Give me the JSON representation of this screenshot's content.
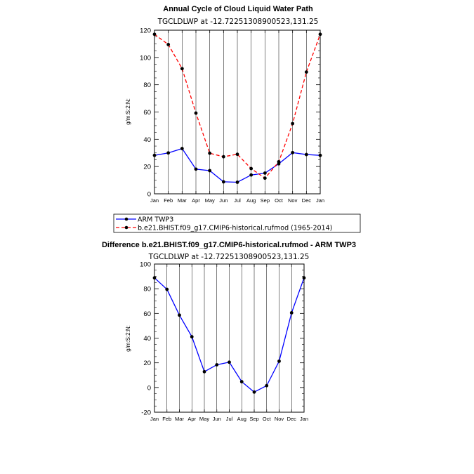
{
  "chart_data": [
    {
      "type": "line",
      "title": "Annual Cycle of Cloud Liquid Water Path",
      "subtitle": "TGCLDLWP  at  -12.72251308900523,131.25",
      "xlabel": "",
      "ylabel": "g/m:S:2:N:",
      "categories": [
        "Jan",
        "Feb",
        "Mar",
        "Apr",
        "May",
        "Jun",
        "Jul",
        "Aug",
        "Sep",
        "Oct",
        "Nov",
        "Dec",
        "Jan"
      ],
      "ylim": [
        0,
        120
      ],
      "yticks": [
        "0",
        "20",
        "40",
        "60",
        "80",
        "100",
        "120"
      ],
      "series": [
        {
          "name": "ARM TWP3",
          "color": "#0000ff",
          "dash": "solid",
          "values": [
            28.2,
            30.0,
            33.2,
            18.1,
            17.0,
            8.8,
            8.5,
            13.8,
            15.2,
            22.0,
            30.2,
            28.8,
            28.2
          ]
        },
        {
          "name": "b.e21.BHIST.f09_g17.CMIP6-historical.rufmod (1965-2014)",
          "color": "#ff0000",
          "dash": "dashed",
          "values": [
            117.0,
            109.5,
            91.8,
            59.2,
            29.8,
            27.2,
            29.0,
            18.5,
            11.5,
            23.5,
            51.5,
            89.3,
            117.0
          ]
        }
      ],
      "legend": {
        "entries": [
          "ARM TWP3",
          "b.e21.BHIST.f09_g17.CMIP6-historical.rufmod (1965-2014)"
        ],
        "placement": "below-plot"
      }
    },
    {
      "type": "line",
      "title": "Difference b.e21.BHIST.f09_g17.CMIP6-historical.rufmod - ARM TWP3",
      "subtitle": "TGCLDLWP  at  -12.72251308900523,131.25",
      "xlabel": "",
      "ylabel": "g/m:S:2:N:",
      "categories": [
        "Jan",
        "Feb",
        "Mar",
        "Apr",
        "May",
        "Jun",
        "Jul",
        "Aug",
        "Sep",
        "Oct",
        "Nov",
        "Dec",
        "Jan"
      ],
      "ylim": [
        -20,
        100
      ],
      "yticks": [
        "-20",
        "0",
        "20",
        "40",
        "60",
        "80",
        "100"
      ],
      "series": [
        {
          "name": "Difference",
          "color": "#0000ff",
          "dash": "solid",
          "values": [
            88.8,
            79.5,
            58.6,
            41.1,
            12.8,
            18.4,
            20.5,
            4.7,
            -3.7,
            1.5,
            21.3,
            60.5,
            88.8
          ]
        }
      ]
    }
  ]
}
